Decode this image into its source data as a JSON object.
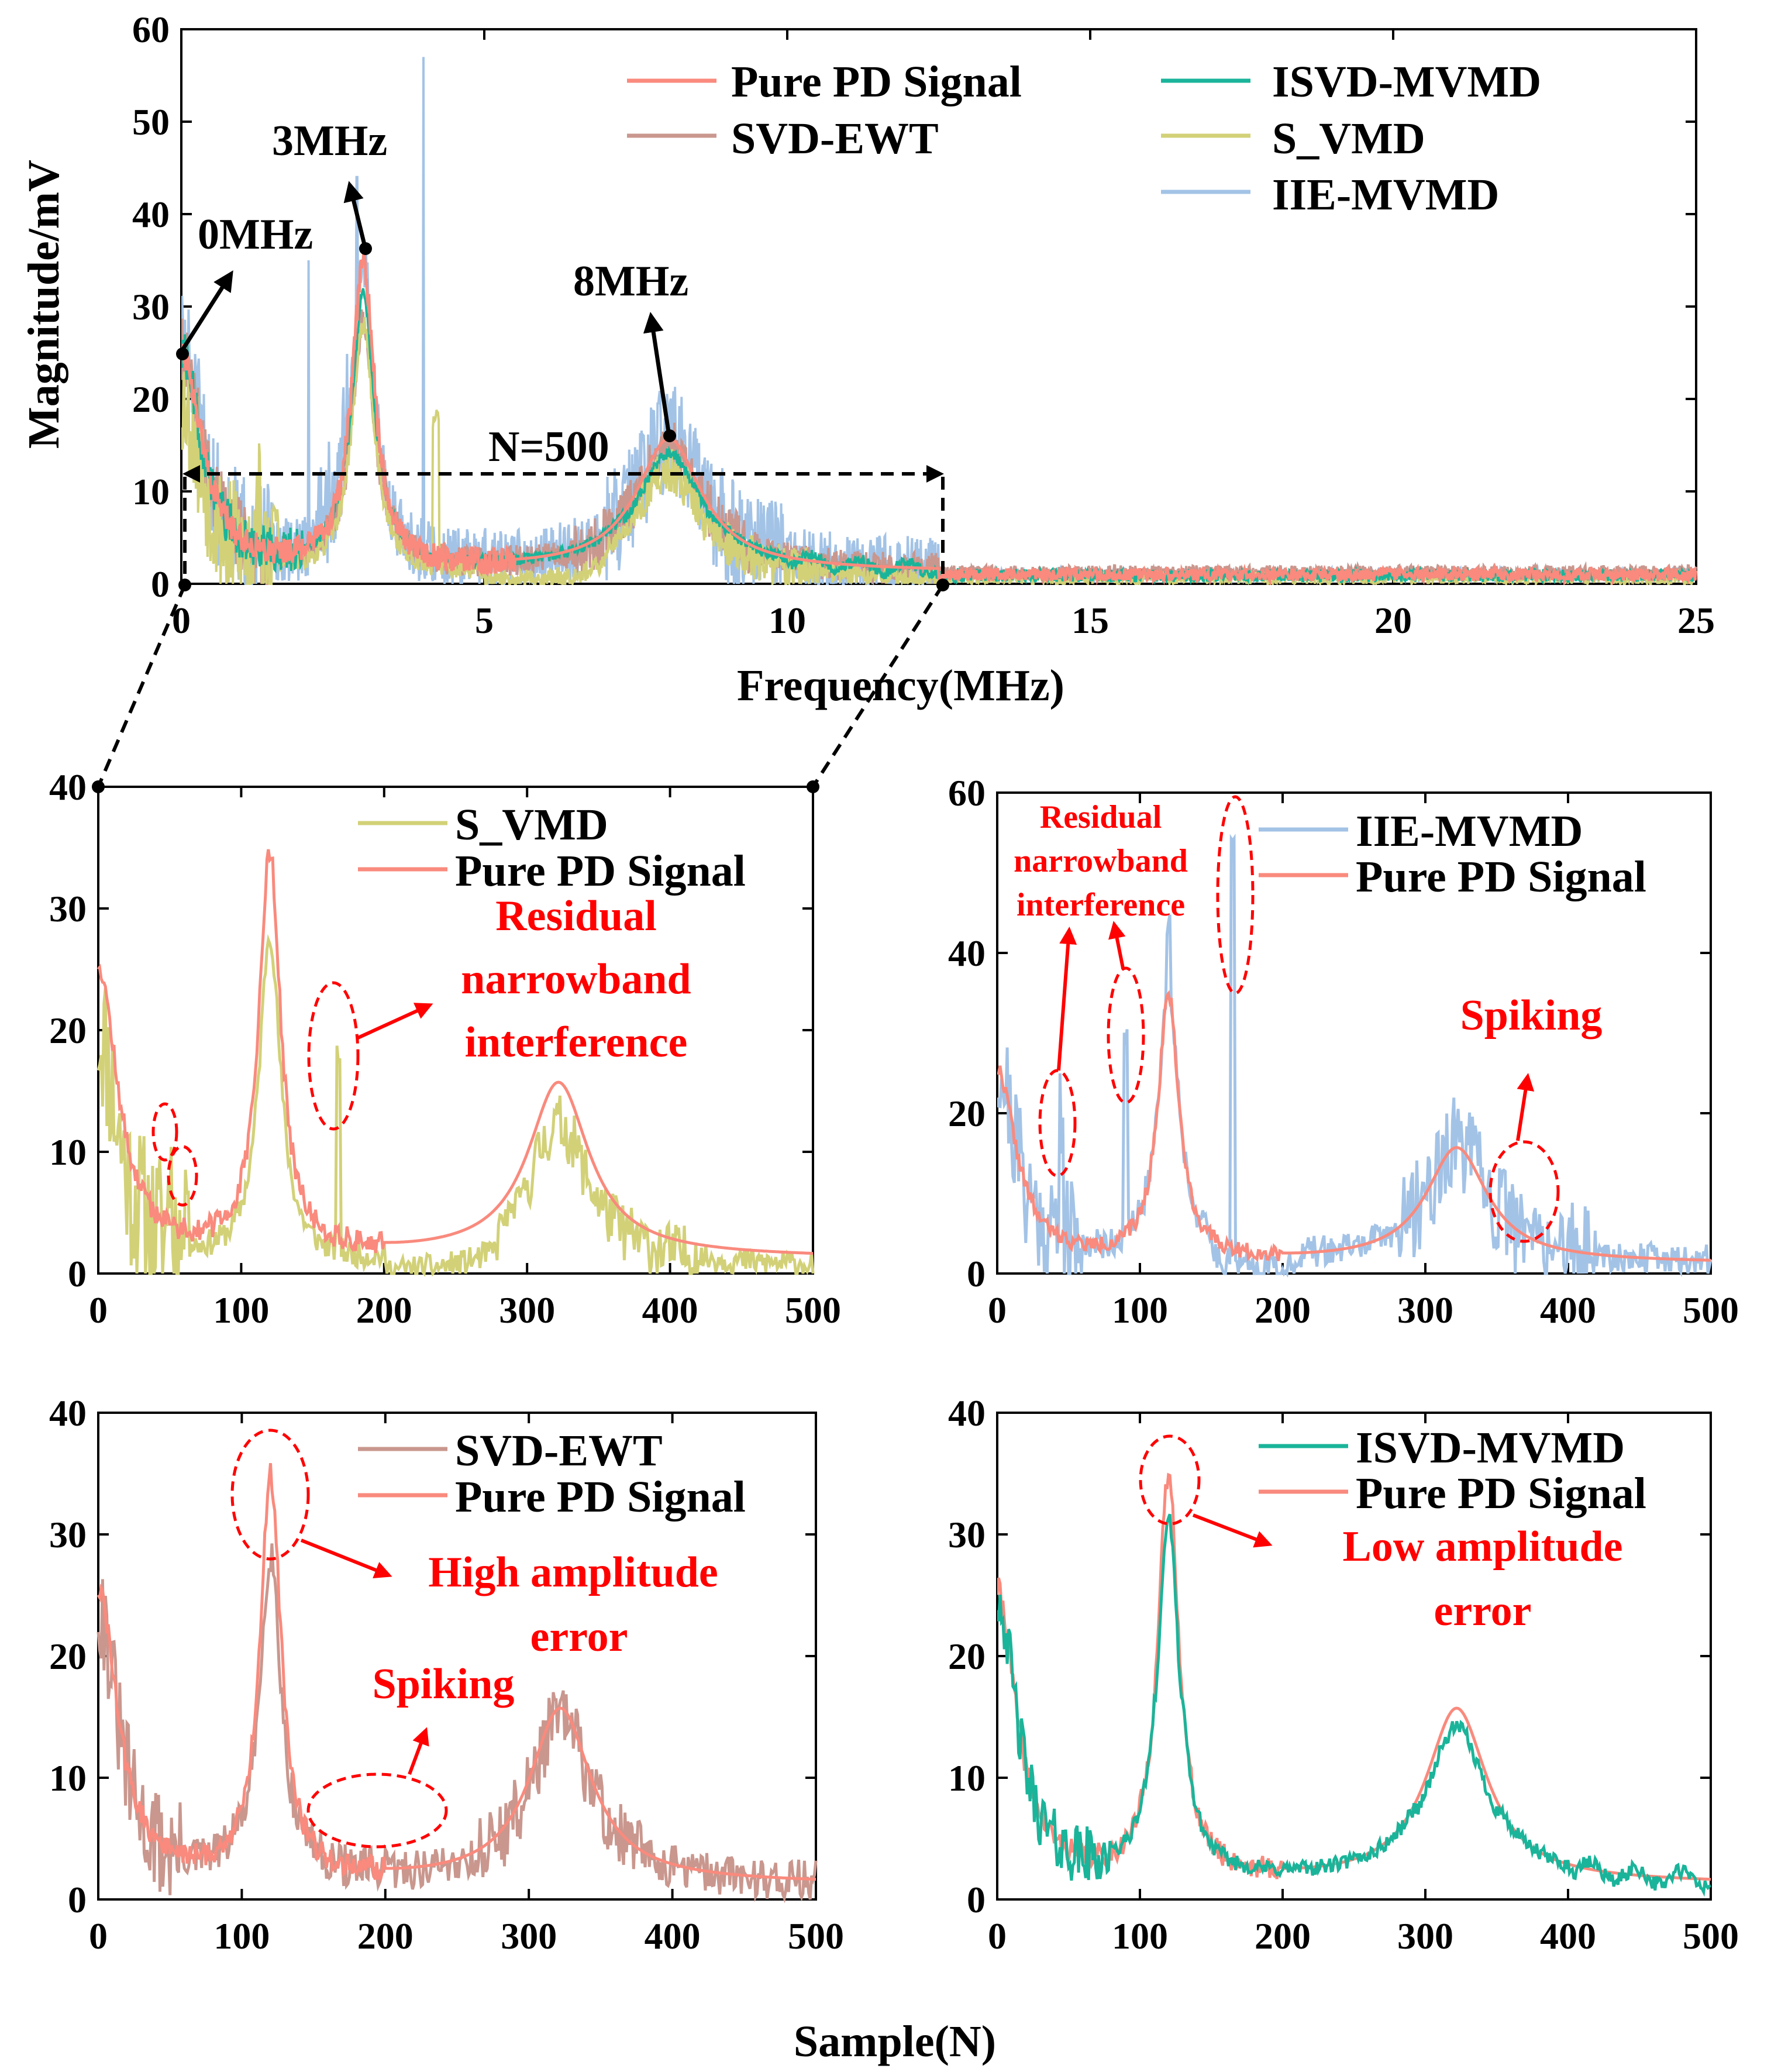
{
  "colors": {
    "pure": "#f98a7d",
    "svd_ewt": "#c9978e",
    "isvd_mvmd": "#1ab49a",
    "s_vmd": "#d2d178",
    "iie_mvmd": "#a3c3e6",
    "annotation": "#ff0000",
    "axis": "#000000"
  },
  "labels": {
    "shared_xlabel": "Sample(N)",
    "zoom_label": "N=500"
  },
  "chart_data": [
    {
      "id": "main",
      "type": "line",
      "xlabel": "Frequency(MHz)",
      "ylabel": "Magnitude/mV",
      "xlim": [
        0,
        25
      ],
      "ylim": [
        0,
        60
      ],
      "xticks": [
        0,
        5,
        10,
        15,
        20,
        25
      ],
      "yticks": [
        0,
        10,
        20,
        30,
        40,
        50,
        60
      ],
      "legend": [
        "Pure PD Signal",
        "SVD-EWT",
        "ISVD-MVMD",
        "S_VMD",
        "IIE-MVMD"
      ],
      "peaks": [
        {
          "label": "0MHz",
          "x": 0,
          "y": 25
        },
        {
          "label": "3MHz",
          "x": 3,
          "y": 36
        },
        {
          "label": "8MHz",
          "x": 8,
          "y": 16
        }
      ],
      "spikes": [
        {
          "x": 2.1,
          "y": 35
        },
        {
          "x": 2.9,
          "y": 44
        },
        {
          "x": 4.0,
          "y": 57
        }
      ]
    },
    {
      "id": "s_vmd",
      "type": "line",
      "xlim": [
        0,
        500
      ],
      "ylim": [
        0,
        40
      ],
      "xticks": [
        0,
        100,
        200,
        300,
        400,
        500
      ],
      "yticks": [
        0,
        10,
        20,
        30,
        40
      ],
      "legend": [
        "S_VMD",
        "Pure PD Signal"
      ],
      "annotations": [
        "Residual",
        "narrowband",
        "interference"
      ]
    },
    {
      "id": "iie_mvmd",
      "type": "line",
      "xlim": [
        0,
        500
      ],
      "ylim": [
        0,
        60
      ],
      "xticks": [
        0,
        100,
        200,
        300,
        400,
        500
      ],
      "yticks": [
        0,
        20,
        40,
        60
      ],
      "legend": [
        "IIE-MVMD",
        "Pure PD Signal"
      ],
      "annotations": [
        "Residual",
        "narrowband",
        "interference",
        "Spiking"
      ]
    },
    {
      "id": "svd_ewt",
      "type": "line",
      "xlim": [
        0,
        500
      ],
      "ylim": [
        0,
        40
      ],
      "xticks": [
        0,
        100,
        200,
        300,
        400,
        500
      ],
      "yticks": [
        0,
        10,
        20,
        30,
        40
      ],
      "legend": [
        "SVD-EWT",
        "Pure PD Signal"
      ],
      "annotations": [
        "High amplitude",
        "error",
        "Spiking"
      ]
    },
    {
      "id": "isvd_mvmd",
      "type": "line",
      "xlim": [
        0,
        500
      ],
      "ylim": [
        0,
        40
      ],
      "xticks": [
        0,
        100,
        200,
        300,
        400,
        500
      ],
      "yticks": [
        0,
        10,
        20,
        30,
        40
      ],
      "legend": [
        "ISVD-MVMD",
        "Pure PD Signal"
      ],
      "annotations": [
        "Low amplitude",
        "error"
      ]
    }
  ]
}
